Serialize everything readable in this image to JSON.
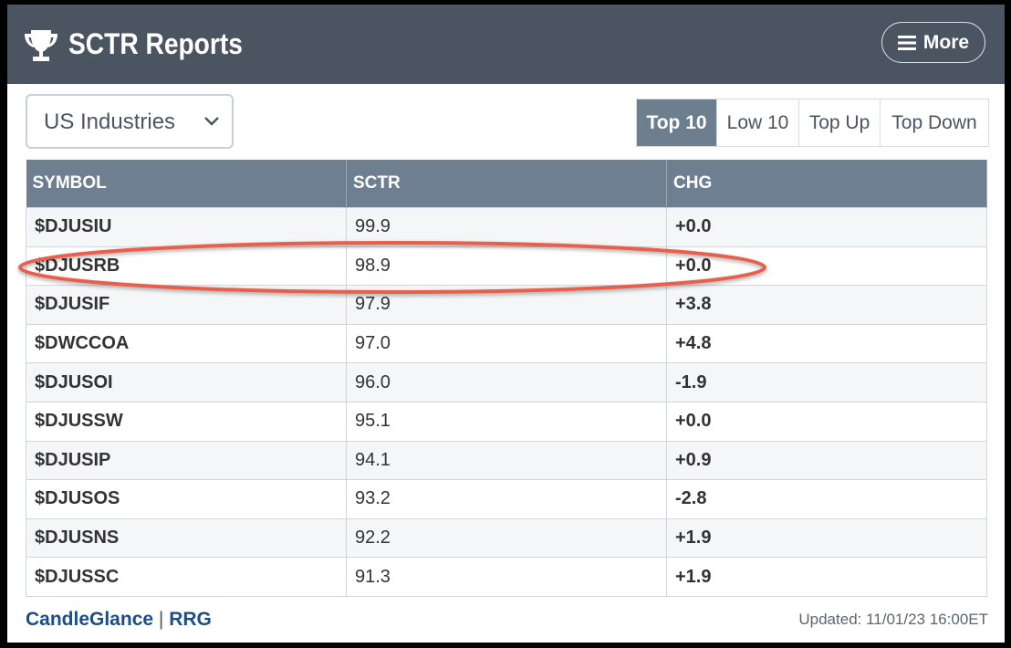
{
  "header": {
    "title": "SCTR Reports",
    "more": "More"
  },
  "dropdown": "US Industries",
  "tabs": [
    "Top 10",
    "Low 10",
    "Top Up",
    "Top Down"
  ],
  "table": {
    "columns": [
      "SYMBOL",
      "SCTR",
      "CHG"
    ],
    "rows": [
      [
        "$DJUSIU",
        "99.9",
        "+0.0"
      ],
      [
        "$DJUSRB",
        "98.9",
        "+0.0"
      ],
      [
        "$DJUSIF",
        "97.9",
        "+3.8"
      ],
      [
        "$DWCCOA",
        "97.0",
        "+4.8"
      ],
      [
        "$DJUSOI",
        "96.0",
        "-1.9"
      ],
      [
        "$DJUSSW",
        "95.1",
        "+0.0"
      ],
      [
        "$DJUSIP",
        "94.1",
        "+0.9"
      ],
      [
        "$DJUSOS",
        "93.2",
        "-2.8"
      ],
      [
        "$DJUSNS",
        "92.2",
        "+1.9"
      ],
      [
        "$DJUSSC",
        "91.3",
        "+1.9"
      ]
    ]
  },
  "footer": {
    "links": [
      "CandleGlance",
      "RRG"
    ],
    "separator": "|",
    "updated": "Updated: 11/01/23 16:00ET"
  }
}
